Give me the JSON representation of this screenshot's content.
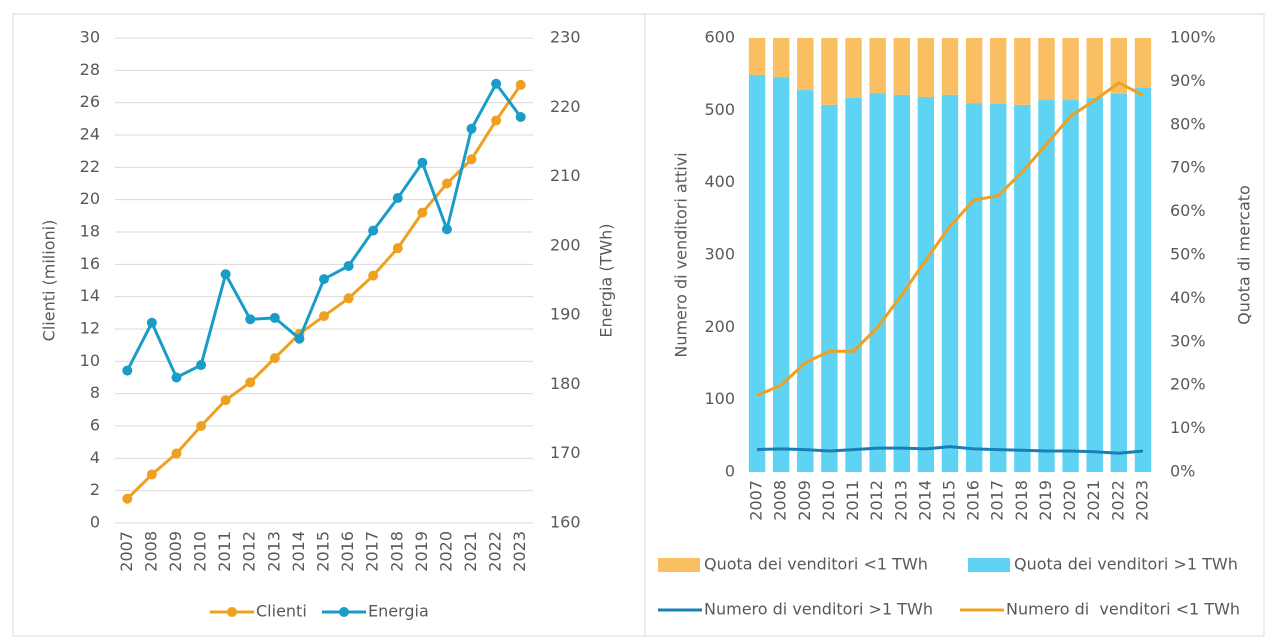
{
  "chart_data": [
    {
      "type": "line",
      "y_label": "Clienti (milioni)",
      "y2_label": "Energia (TWh)",
      "categories": [
        "2007",
        "2008",
        "2009",
        "2010",
        "2011",
        "2012",
        "2013",
        "2014",
        "2015",
        "2016",
        "2017",
        "2018",
        "2019",
        "2020",
        "2021",
        "2022",
        "2023"
      ],
      "series": [
        {
          "name": "Clienti",
          "color": "#f0a020",
          "values": [
            1.5,
            3.0,
            4.3,
            6.0,
            7.6,
            8.7,
            10.2,
            11.7,
            12.8,
            13.9,
            15.3,
            17.0,
            19.2,
            21.0,
            22.5,
            24.9,
            27.1
          ]
        },
        {
          "name": "Energia",
          "color": "#1a9cc8",
          "axis": "y2",
          "values": [
            182.0,
            188.9,
            181.0,
            182.8,
            195.9,
            189.4,
            189.6,
            186.6,
            195.2,
            197.1,
            202.2,
            206.9,
            212.0,
            202.4,
            216.9,
            223.4,
            218.6
          ]
        }
      ],
      "markers": true,
      "ylim": [
        0,
        30
      ],
      "yticks": [
        0,
        2,
        4,
        6,
        8,
        10,
        12,
        14,
        16,
        18,
        20,
        22,
        24,
        26,
        28,
        30
      ],
      "y2lim": [
        160,
        230
      ],
      "y2ticks": [
        160,
        170,
        180,
        190,
        200,
        210,
        220,
        230
      ],
      "grid": true
    },
    {
      "type": "bar",
      "stacked": true,
      "y_label": "Numero di venditori attivi",
      "y2_label": "Quota di mercato",
      "categories": [
        "2007",
        "2008",
        "2009",
        "2010",
        "2011",
        "2012",
        "2013",
        "2014",
        "2015",
        "2016",
        "2017",
        "2018",
        "2019",
        "2020",
        "2021",
        "2022",
        "2023"
      ],
      "series": [
        {
          "name": "Quota dei venditori >1 TWh",
          "color": "#5ed3f3",
          "type": "bar",
          "axis": "y2",
          "values": [
            91.5,
            91.0,
            88.0,
            84.6,
            86.2,
            87.3,
            86.9,
            86.4,
            86.9,
            85.0,
            84.8,
            84.6,
            85.7,
            85.7,
            86.2,
            87.1,
            88.5
          ]
        },
        {
          "name": "Quota dei venditori <1 TWh",
          "color": "#fbbf63",
          "type": "bar",
          "axis": "y2",
          "values": [
            8.5,
            9.0,
            12.0,
            15.4,
            13.8,
            12.7,
            13.1,
            13.6,
            13.1,
            15.0,
            15.2,
            15.4,
            14.3,
            14.3,
            13.8,
            12.9,
            11.5
          ]
        },
        {
          "name": "Numero di venditori >1 TWh",
          "color": "#1a7fb5",
          "type": "line",
          "values": [
            31,
            32,
            31,
            29,
            31,
            33,
            33,
            32,
            35,
            32,
            31,
            30,
            29,
            29,
            28,
            26,
            29
          ]
        },
        {
          "name": "Numero di  venditori <1 TWh",
          "color": "#f0a020",
          "type": "line",
          "values": [
            106,
            120,
            151,
            167,
            167,
            200,
            245,
            293,
            340,
            376,
            382,
            415,
            453,
            492,
            514,
            538,
            521
          ]
        }
      ],
      "ylim": [
        0,
        600
      ],
      "yticks": [
        0,
        100,
        200,
        300,
        400,
        500,
        600
      ],
      "y2lim": [
        0,
        100
      ],
      "y2ticks": [
        {
          "value": 0,
          "label": "0%"
        },
        {
          "value": 10,
          "label": "10%"
        },
        {
          "value": 20,
          "label": "20%"
        },
        {
          "value": 30,
          "label": "30%"
        },
        {
          "value": 40,
          "label": "40%"
        },
        {
          "value": 50,
          "label": "50%"
        },
        {
          "value": 60,
          "label": "60%"
        },
        {
          "value": 70,
          "label": "70%"
        },
        {
          "value": 80,
          "label": "80%"
        },
        {
          "value": 90,
          "label": "90%"
        },
        {
          "value": 100,
          "label": "100%"
        }
      ],
      "grid": false
    }
  ]
}
